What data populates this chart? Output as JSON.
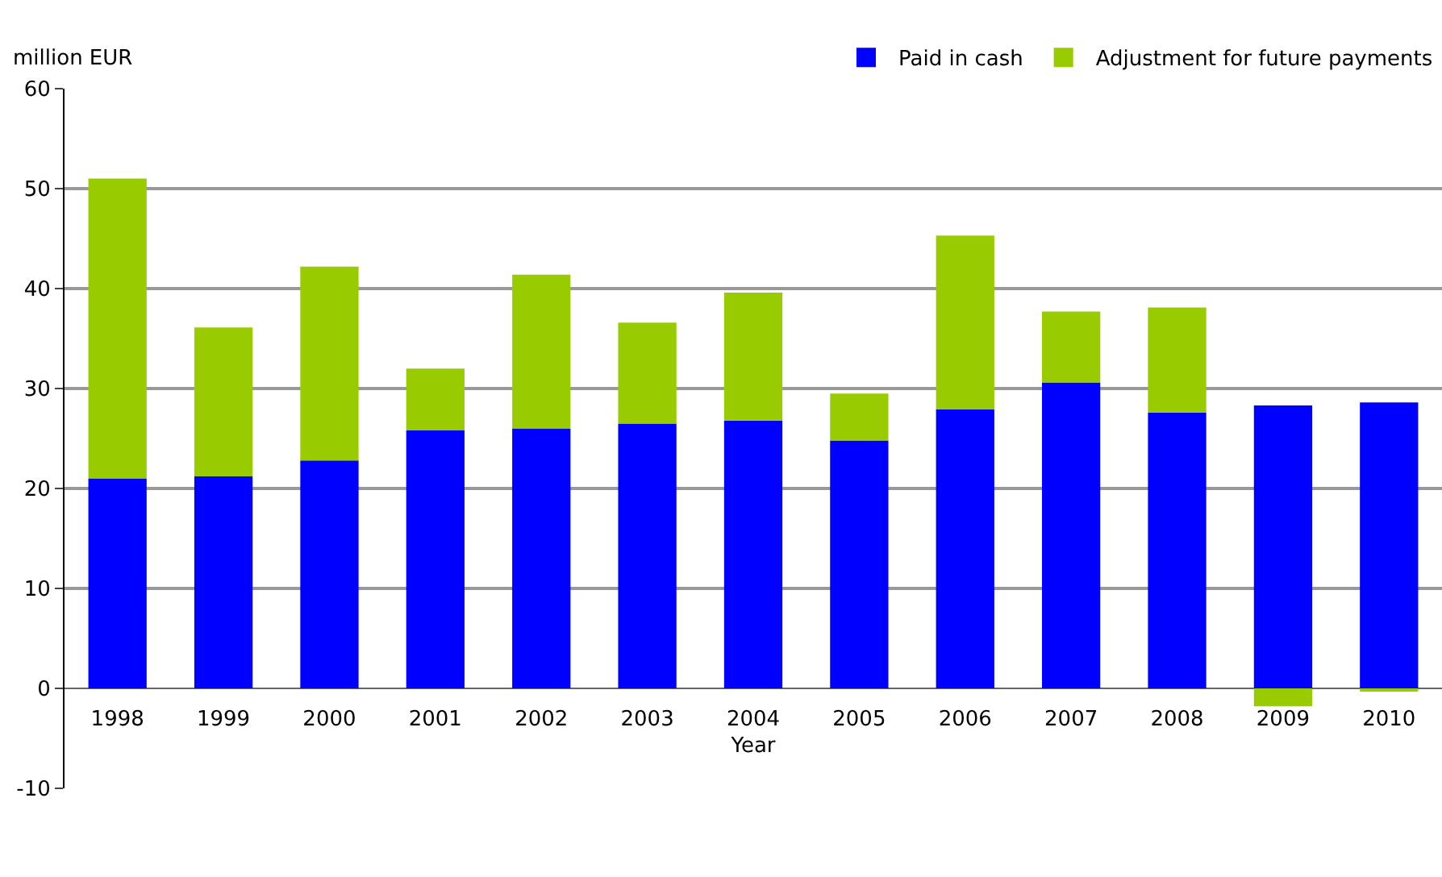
{
  "chart_data": {
    "type": "bar",
    "stacked": true,
    "ylabel": "million EUR",
    "xlabel": "Year",
    "categories": [
      "1998",
      "1999",
      "2000",
      "2001",
      "2002",
      "2003",
      "2004",
      "2005",
      "2006",
      "2007",
      "2008",
      "2009",
      "2010"
    ],
    "series": [
      {
        "name": "Paid in cash",
        "color": "#0000ff",
        "values": [
          21,
          21.2,
          22.8,
          25.8,
          26,
          26.5,
          26.8,
          24.8,
          27.9,
          30.6,
          27.6,
          28.3,
          28.6
        ]
      },
      {
        "name": "Adjustment for future payments",
        "color": "#99cc00",
        "values": [
          30,
          14.9,
          19.4,
          6.2,
          15.4,
          10.1,
          12.8,
          4.7,
          17.4,
          7.1,
          10.5,
          -1.8,
          -0.3
        ]
      }
    ],
    "ylim": [
      -10,
      60
    ],
    "yticks": [
      -10,
      0,
      10,
      20,
      30,
      40,
      50,
      60
    ],
    "grid": "y",
    "legend": "top right"
  }
}
